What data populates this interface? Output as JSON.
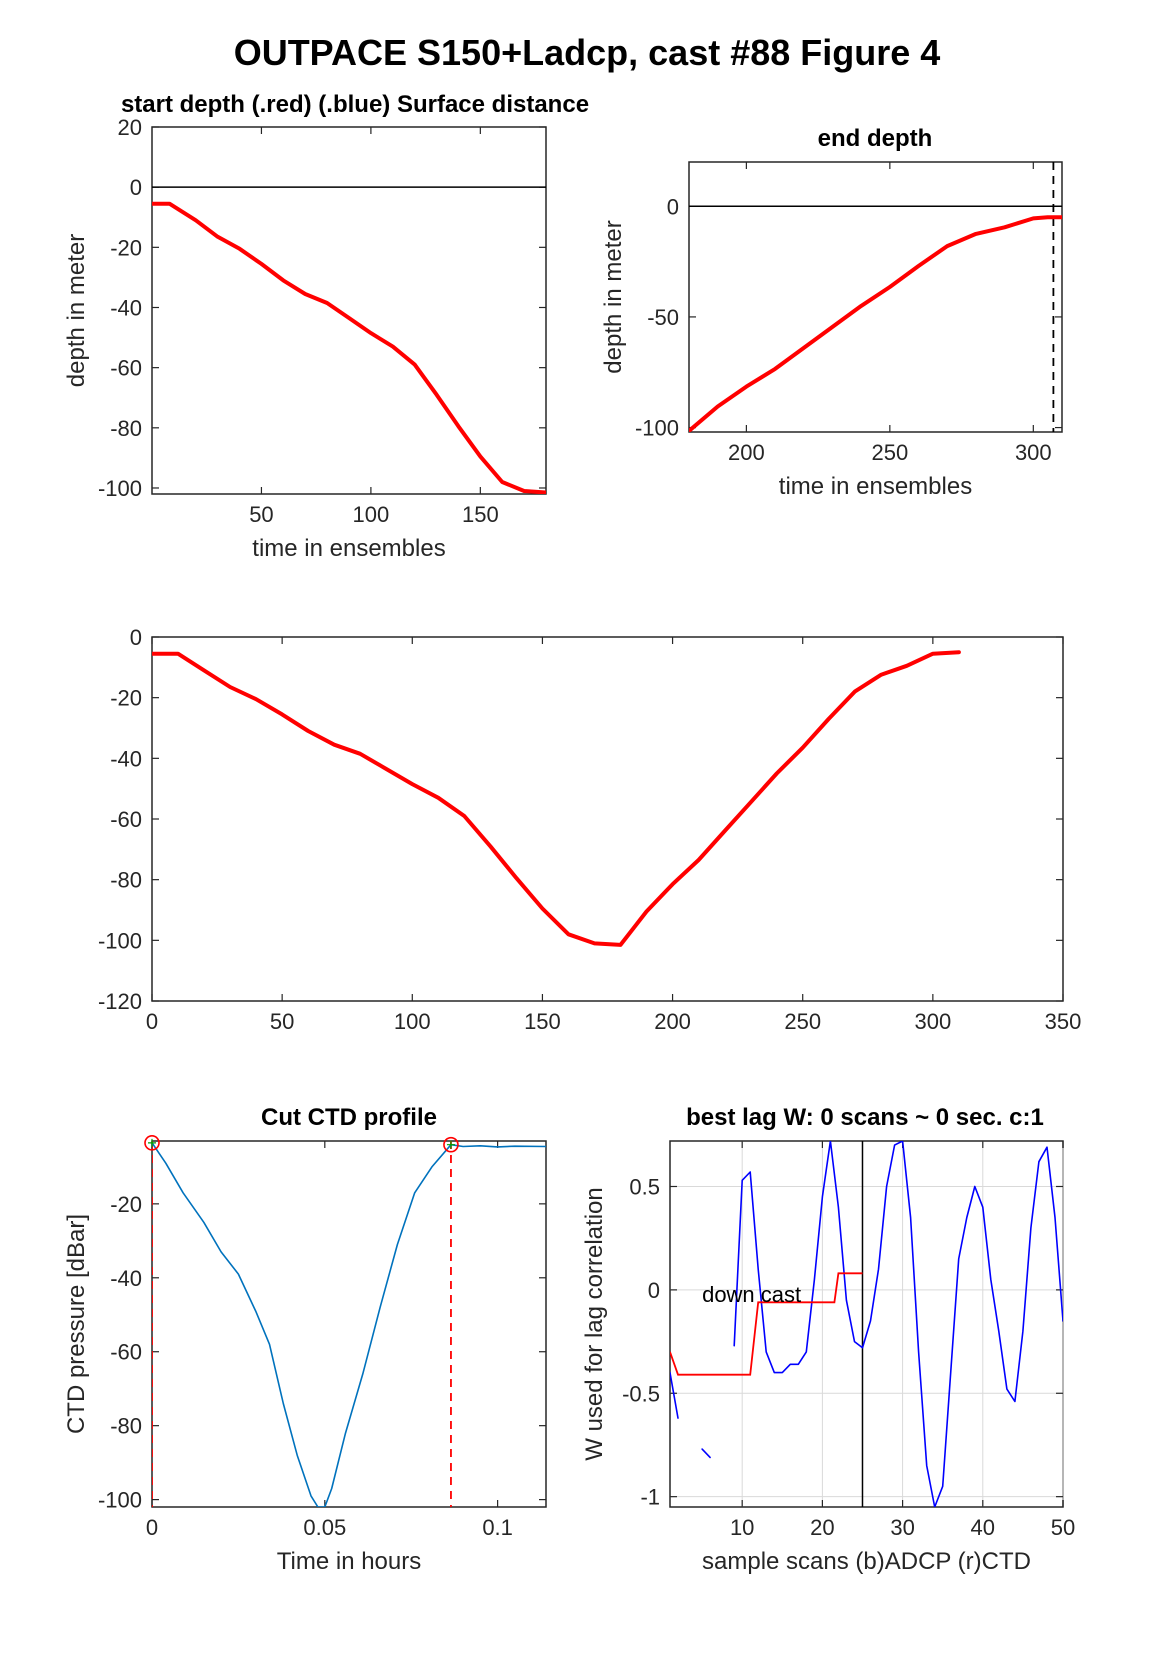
{
  "figure_title": "OUTPACE S150+Ladcp, cast #88   Figure 4",
  "chart_data": [
    {
      "id": "start",
      "type": "line",
      "title": "start depth (.red) (.blue) Surface distance",
      "xlabel": "time in ensembles",
      "ylabel": "depth in meter",
      "xlim": [
        0,
        180
      ],
      "ylim": [
        -102,
        20
      ],
      "xticks": [
        50,
        100,
        150
      ],
      "yticks": [
        20,
        0,
        -20,
        -40,
        -60,
        -80,
        -100
      ],
      "grid": false,
      "hlines": [
        0
      ],
      "series": [
        {
          "color": "#ff0000",
          "x": [
            0,
            8,
            20,
            30,
            40,
            50,
            60,
            70,
            80,
            90,
            100,
            110,
            120,
            130,
            140,
            150,
            160,
            170,
            180
          ],
          "y": [
            -5.5,
            -5.5,
            -11,
            -16.5,
            -20.5,
            -25.5,
            -31,
            -35.5,
            -38.5,
            -43.5,
            -48.5,
            -53,
            -59,
            -69,
            -79.5,
            -89.5,
            -98,
            -101,
            -101.5
          ]
        }
      ]
    },
    {
      "id": "end",
      "type": "line",
      "title": "end depth",
      "xlabel": "time in ensembles",
      "ylabel": "depth in meter",
      "xlim": [
        180,
        310
      ],
      "ylim": [
        -102,
        20
      ],
      "xticks": [
        200,
        250,
        300
      ],
      "yticks": [
        0,
        -50,
        -100
      ],
      "grid": false,
      "hlines": [
        0
      ],
      "vlines_dashed": [
        307
      ],
      "series": [
        {
          "color": "#ff0000",
          "x": [
            180,
            190,
            200,
            210,
            220,
            230,
            240,
            250,
            260,
            270,
            280,
            290,
            300,
            305,
            310
          ],
          "y": [
            -101.5,
            -90.5,
            -81.5,
            -73.5,
            -64,
            -54.5,
            -45,
            -36.5,
            -27,
            -18,
            -12.5,
            -9.5,
            -5.5,
            -5,
            -5
          ]
        }
      ]
    },
    {
      "id": "full",
      "type": "line",
      "title": "",
      "xlabel": "",
      "ylabel": "",
      "xlim": [
        0,
        350
      ],
      "ylim": [
        -120,
        0
      ],
      "xticks": [
        0,
        50,
        100,
        150,
        200,
        250,
        300,
        350
      ],
      "yticks": [
        0,
        -20,
        -40,
        -60,
        -80,
        -100,
        -120
      ],
      "grid": false,
      "series": [
        {
          "color": "#ff0000",
          "x": [
            0,
            10,
            20,
            30,
            40,
            50,
            60,
            70,
            80,
            90,
            100,
            110,
            120,
            130,
            140,
            150,
            160,
            170,
            180,
            190,
            200,
            210,
            220,
            230,
            240,
            250,
            260,
            270,
            280,
            290,
            300,
            310
          ],
          "y": [
            -5.5,
            -5.5,
            -11,
            -16.5,
            -20.5,
            -25.5,
            -31,
            -35.5,
            -38.5,
            -43.5,
            -48.5,
            -53,
            -59,
            -69,
            -79.5,
            -89.5,
            -98,
            -101,
            -101.5,
            -90.5,
            -81.5,
            -73.5,
            -64,
            -54.5,
            -45,
            -36.5,
            -27,
            -18,
            -12.5,
            -9.5,
            -5.5,
            -5
          ]
        }
      ]
    },
    {
      "id": "ctd",
      "type": "line",
      "title": "Cut CTD profile",
      "xlabel": "Time in hours",
      "ylabel": "CTD pressure [dBar]",
      "xlim": [
        0,
        0.114
      ],
      "ylim": [
        -102,
        -3
      ],
      "xticks": [
        0,
        0.05,
        0.1
      ],
      "xticklabels": [
        "0",
        "0.05",
        "0.1"
      ],
      "yticks": [
        -20,
        -40,
        -60,
        -80,
        -100
      ],
      "grid": false,
      "vlines_dashed": [
        0,
        0.0865
      ],
      "markers": [
        {
          "x": 0,
          "y": -3.5
        },
        {
          "x": 0.0865,
          "y": -4
        }
      ],
      "series": [
        {
          "color": "#0072bd",
          "x": [
            0,
            0.004,
            0.009,
            0.015,
            0.02,
            0.025,
            0.03,
            0.034,
            0.038,
            0.042,
            0.046,
            0.048,
            0.05,
            0.052,
            0.056,
            0.061,
            0.066,
            0.071,
            0.076,
            0.081,
            0.0865,
            0.09,
            0.095,
            0.1,
            0.105,
            0.114
          ],
          "y": [
            -3.5,
            -9,
            -17,
            -25,
            -33,
            -39,
            -49,
            -58,
            -74,
            -88,
            -99,
            -102,
            -102,
            -97,
            -82,
            -66,
            -48,
            -31,
            -17,
            -10,
            -4,
            -4.5,
            -4.3,
            -4.6,
            -4.4,
            -4.5
          ]
        }
      ]
    },
    {
      "id": "lag",
      "type": "line",
      "title": "best lag W: 0 scans ~ 0 sec.  c:1",
      "xlabel": "sample scans (b)ADCP (r)CTD",
      "ylabel": "W used for lag correlation",
      "xlim": [
        1,
        50
      ],
      "ylim": [
        -1.05,
        0.72
      ],
      "xticks": [
        10,
        20,
        30,
        40,
        50
      ],
      "yticks": [
        0.5,
        0,
        -0.5,
        -1
      ],
      "yticklabels": [
        "0.5",
        "0",
        "-0.5",
        "-1"
      ],
      "grid": true,
      "vlines": [
        25
      ],
      "annotation": {
        "text": "down cast",
        "x": 5,
        "y": -0.02
      },
      "series": [
        {
          "color": "#0000ff",
          "x": [
            1,
            2
          ],
          "y": [
            -0.4,
            -0.62
          ]
        },
        {
          "color": "#0000ff",
          "x": [
            5,
            6
          ],
          "y": [
            -0.77,
            -0.81
          ]
        },
        {
          "color": "#0000ff",
          "x": [
            9,
            10,
            11,
            12,
            13,
            14,
            15,
            16,
            17,
            18,
            19,
            20,
            21,
            22,
            23,
            24,
            25,
            26,
            27,
            28,
            29,
            30,
            31,
            32,
            33,
            34,
            35,
            36,
            37,
            38,
            39,
            40,
            41,
            42,
            43,
            44,
            45,
            46,
            47,
            48,
            49,
            50
          ],
          "y": [
            -0.27,
            0.53,
            0.57,
            0.1,
            -0.3,
            -0.4,
            -0.4,
            -0.36,
            -0.36,
            -0.3,
            0.05,
            0.45,
            0.72,
            0.4,
            -0.05,
            -0.25,
            -0.28,
            -0.15,
            0.1,
            0.5,
            0.7,
            0.72,
            0.35,
            -0.3,
            -0.85,
            -1.05,
            -0.95,
            -0.4,
            0.15,
            0.35,
            0.5,
            0.4,
            0.05,
            -0.2,
            -0.48,
            -0.54,
            -0.2,
            0.3,
            0.62,
            0.69,
            0.35,
            -0.15
          ]
        }
      ],
      "step_series": [
        {
          "color": "#ff0000",
          "x": [
            1,
            2,
            11,
            12,
            21.5,
            22,
            25
          ],
          "y": [
            -0.3,
            -0.41,
            -0.41,
            -0.06,
            -0.06,
            0.08,
            0.08
          ]
        }
      ]
    }
  ]
}
